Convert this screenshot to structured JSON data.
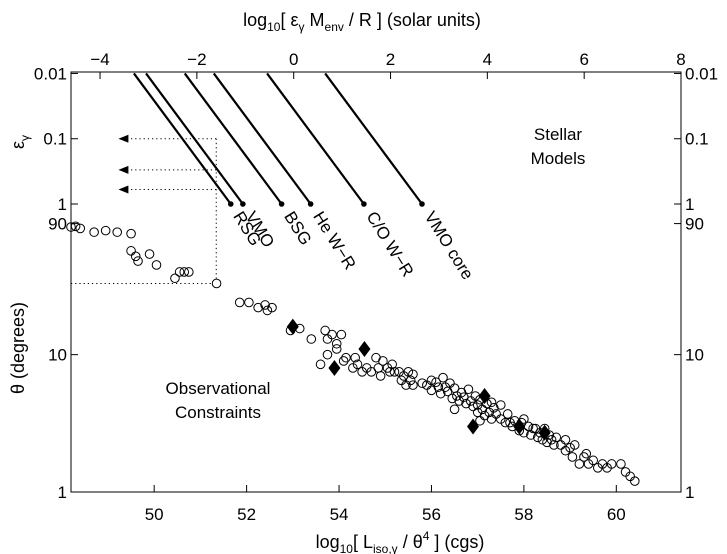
{
  "chart_data": {
    "type": "scatter",
    "title": "",
    "bottom_axis": {
      "label": "log10[ L_iso,γ / θ^4 ] (cgs)",
      "label_parts": {
        "pre": "log",
        "sub": "10",
        "mid": "[ L",
        "sub2": "iso,γ",
        "mid2": " / θ",
        "sup": "4",
        "post": " ] (cgs)"
      },
      "range": [
        48.2,
        61.4
      ],
      "ticks": [
        {
          "v": 50,
          "t": "50"
        },
        {
          "v": 52,
          "t": "52"
        },
        {
          "v": 54,
          "t": "54"
        },
        {
          "v": 56,
          "t": "56"
        },
        {
          "v": 58,
          "t": "58"
        },
        {
          "v": 60,
          "t": "60"
        }
      ]
    },
    "top_axis": {
      "label": "log10[ εγ Menv / R ] (solar units)",
      "label_parts": {
        "pre": "log",
        "sub": "10",
        "mid": "[ ε",
        "sub2": "γ",
        "mid2": " M",
        "sub3": "env",
        "post": " / R ] (solar units)"
      },
      "range": [
        -4.6,
        8.0
      ],
      "ticks": [
        {
          "v": -4,
          "t": "−4"
        },
        {
          "v": -2,
          "t": "−2"
        },
        {
          "v": 0,
          "t": "0"
        },
        {
          "v": 2,
          "t": "2"
        },
        {
          "v": 4,
          "t": "4"
        },
        {
          "v": 6,
          "t": "6"
        },
        {
          "v": 8,
          "t": "8"
        }
      ]
    },
    "upper_axis": {
      "label": "εγ",
      "label_parts": {
        "main": "ε",
        "sub": "γ"
      },
      "scale": "log",
      "range": [
        0.0095,
        1
      ],
      "ticks": [
        {
          "v": 0.01,
          "t": "0.01"
        },
        {
          "v": 0.1,
          "t": "0.1"
        },
        {
          "v": 1,
          "t": "1"
        }
      ]
    },
    "lower_axis": {
      "label": "θ (degrees)",
      "scale": "log",
      "range": [
        1,
        125
      ],
      "ticks": [
        {
          "v": 90,
          "t": "90"
        },
        {
          "v": 10,
          "t": "10"
        },
        {
          "v": 1,
          "t": "1"
        }
      ]
    },
    "stellar_models": [
      {
        "name": "RSG",
        "x_at_eps1": -1.3
      },
      {
        "name": "VMO",
        "x_at_eps1": -1.05
      },
      {
        "name": "BSG",
        "x_at_eps1": -0.25
      },
      {
        "name": "He W−R",
        "x_at_eps1": 0.35
      },
      {
        "name": "C/O W−R",
        "x_at_eps1": 1.45
      },
      {
        "name": "VMO core",
        "x_at_eps1": 2.65
      }
    ],
    "arrows_eps": [
      0.1,
      0.3,
      0.6
    ],
    "arrow_tail_x": -1.6,
    "arrow_head_x": -3.6,
    "dotted_guide": {
      "x_top": -1.6,
      "lower_x": 51.35,
      "theta": 33
    },
    "observational_constraints": [
      {
        "x": 48.2,
        "y": 85
      },
      {
        "x": 48.3,
        "y": 86
      },
      {
        "x": 48.4,
        "y": 83
      },
      {
        "x": 48.7,
        "y": 78
      },
      {
        "x": 48.95,
        "y": 80
      },
      {
        "x": 49.2,
        "y": 78
      },
      {
        "x": 49.5,
        "y": 76
      },
      {
        "x": 49.5,
        "y": 57
      },
      {
        "x": 49.6,
        "y": 52
      },
      {
        "x": 49.65,
        "y": 48
      },
      {
        "x": 49.9,
        "y": 54
      },
      {
        "x": 50.05,
        "y": 45
      },
      {
        "x": 50.45,
        "y": 36
      },
      {
        "x": 50.55,
        "y": 40
      },
      {
        "x": 50.65,
        "y": 40
      },
      {
        "x": 50.75,
        "y": 40
      },
      {
        "x": 51.35,
        "y": 33
      },
      {
        "x": 51.85,
        "y": 24
      },
      {
        "x": 52.05,
        "y": 24
      },
      {
        "x": 52.25,
        "y": 22
      },
      {
        "x": 52.4,
        "y": 23
      },
      {
        "x": 52.45,
        "y": 21
      },
      {
        "x": 52.55,
        "y": 22
      },
      {
        "x": 52.95,
        "y": 15
      },
      {
        "x": 53.15,
        "y": 15.5
      },
      {
        "x": 53.4,
        "y": 13
      },
      {
        "x": 53.7,
        "y": 15
      },
      {
        "x": 53.75,
        "y": 13
      },
      {
        "x": 53.85,
        "y": 14
      },
      {
        "x": 53.95,
        "y": 12
      },
      {
        "x": 53.95,
        "y": 11
      },
      {
        "x": 54.05,
        "y": 14
      },
      {
        "x": 53.6,
        "y": 8.5
      },
      {
        "x": 53.75,
        "y": 10
      },
      {
        "x": 54.1,
        "y": 9
      },
      {
        "x": 54.15,
        "y": 9.5
      },
      {
        "x": 54.3,
        "y": 8
      },
      {
        "x": 54.35,
        "y": 9.5
      },
      {
        "x": 54.4,
        "y": 8.5
      },
      {
        "x": 54.5,
        "y": 7.5
      },
      {
        "x": 54.6,
        "y": 8
      },
      {
        "x": 54.7,
        "y": 7.5
      },
      {
        "x": 54.8,
        "y": 9.5
      },
      {
        "x": 54.85,
        "y": 8
      },
      {
        "x": 54.9,
        "y": 7
      },
      {
        "x": 54.95,
        "y": 9
      },
      {
        "x": 55.05,
        "y": 8
      },
      {
        "x": 55.1,
        "y": 7.5
      },
      {
        "x": 55.15,
        "y": 8.5
      },
      {
        "x": 55.2,
        "y": 7.5
      },
      {
        "x": 55.3,
        "y": 7.5
      },
      {
        "x": 55.35,
        "y": 6.5
      },
      {
        "x": 55.4,
        "y": 7
      },
      {
        "x": 55.45,
        "y": 6
      },
      {
        "x": 55.5,
        "y": 7.5
      },
      {
        "x": 55.55,
        "y": 6.5
      },
      {
        "x": 55.6,
        "y": 6
      },
      {
        "x": 55.6,
        "y": 7.2
      },
      {
        "x": 55.8,
        "y": 6.2
      },
      {
        "x": 55.9,
        "y": 6
      },
      {
        "x": 56.0,
        "y": 6.5
      },
      {
        "x": 56.0,
        "y": 5.5
      },
      {
        "x": 56.1,
        "y": 6.3
      },
      {
        "x": 56.15,
        "y": 5.8
      },
      {
        "x": 56.2,
        "y": 5.2
      },
      {
        "x": 56.25,
        "y": 6.8
      },
      {
        "x": 56.3,
        "y": 5.8
      },
      {
        "x": 56.35,
        "y": 5.4
      },
      {
        "x": 56.4,
        "y": 6.2
      },
      {
        "x": 56.45,
        "y": 4.8
      },
      {
        "x": 56.5,
        "y": 5.7
      },
      {
        "x": 56.55,
        "y": 5
      },
      {
        "x": 56.6,
        "y": 4.6
      },
      {
        "x": 56.65,
        "y": 5.3
      },
      {
        "x": 56.7,
        "y": 4.9
      },
      {
        "x": 56.75,
        "y": 4.4
      },
      {
        "x": 56.8,
        "y": 5.6
      },
      {
        "x": 56.85,
        "y": 4.6
      },
      {
        "x": 56.9,
        "y": 4.2
      },
      {
        "x": 56.95,
        "y": 5
      },
      {
        "x": 57.0,
        "y": 4.3
      },
      {
        "x": 57.0,
        "y": 3.8
      },
      {
        "x": 57.05,
        "y": 4.7
      },
      {
        "x": 57.1,
        "y": 4
      },
      {
        "x": 57.15,
        "y": 3.6
      },
      {
        "x": 57.2,
        "y": 4.4
      },
      {
        "x": 57.25,
        "y": 3.8
      },
      {
        "x": 57.3,
        "y": 3.4
      },
      {
        "x": 57.35,
        "y": 4.1
      },
      {
        "x": 57.4,
        "y": 3.7
      },
      {
        "x": 57.5,
        "y": 3.4
      },
      {
        "x": 57.6,
        "y": 3.2
      },
      {
        "x": 57.65,
        "y": 3.7
      },
      {
        "x": 57.7,
        "y": 3.2
      },
      {
        "x": 57.75,
        "y": 3
      },
      {
        "x": 57.8,
        "y": 3.3
      },
      {
        "x": 57.9,
        "y": 2.8
      },
      {
        "x": 57.95,
        "y": 3.2
      },
      {
        "x": 58.0,
        "y": 2.7
      },
      {
        "x": 58.1,
        "y": 3
      },
      {
        "x": 58.15,
        "y": 2.6
      },
      {
        "x": 58.2,
        "y": 2.9
      },
      {
        "x": 58.3,
        "y": 2.5
      },
      {
        "x": 58.35,
        "y": 2.7
      },
      {
        "x": 58.4,
        "y": 2.4
      },
      {
        "x": 58.45,
        "y": 2.9
      },
      {
        "x": 58.5,
        "y": 2.3
      },
      {
        "x": 58.55,
        "y": 2.6
      },
      {
        "x": 58.6,
        "y": 2.4
      },
      {
        "x": 58.65,
        "y": 2.2
      },
      {
        "x": 58.7,
        "y": 2.5
      },
      {
        "x": 58.8,
        "y": 2.2
      },
      {
        "x": 58.9,
        "y": 2
      },
      {
        "x": 59.0,
        "y": 2.1
      },
      {
        "x": 59.05,
        "y": 1.8
      },
      {
        "x": 59.1,
        "y": 2.2
      },
      {
        "x": 59.2,
        "y": 1.6
      },
      {
        "x": 59.3,
        "y": 1.8
      },
      {
        "x": 59.4,
        "y": 1.6
      },
      {
        "x": 59.5,
        "y": 1.7
      },
      {
        "x": 59.6,
        "y": 1.5
      },
      {
        "x": 59.7,
        "y": 1.6
      },
      {
        "x": 59.8,
        "y": 1.5
      },
      {
        "x": 59.9,
        "y": 1.6
      },
      {
        "x": 60.1,
        "y": 1.6
      },
      {
        "x": 60.2,
        "y": 1.4
      },
      {
        "x": 60.3,
        "y": 1.3
      },
      {
        "x": 60.4,
        "y": 1.2
      },
      {
        "x": 57.5,
        "y": 4.3
      },
      {
        "x": 57.3,
        "y": 4.5
      },
      {
        "x": 56.5,
        "y": 4.0
      },
      {
        "x": 57.05,
        "y": 3.3
      },
      {
        "x": 58.0,
        "y": 3.4
      },
      {
        "x": 58.25,
        "y": 2.9
      },
      {
        "x": 59.35,
        "y": 1.9
      },
      {
        "x": 58.9,
        "y": 2.4
      }
    ],
    "highlighted": [
      {
        "x": 53.0,
        "y": 16
      },
      {
        "x": 53.9,
        "y": 8
      },
      {
        "x": 54.55,
        "y": 11
      },
      {
        "x": 56.9,
        "y": 3
      },
      {
        "x": 57.15,
        "y": 5
      },
      {
        "x": 57.9,
        "y": 3
      },
      {
        "x": 58.45,
        "y": 2.7
      }
    ],
    "annotations": {
      "stellar_models": [
        "Stellar",
        "Models"
      ],
      "observational": [
        "Observational",
        "Constraints"
      ]
    }
  }
}
